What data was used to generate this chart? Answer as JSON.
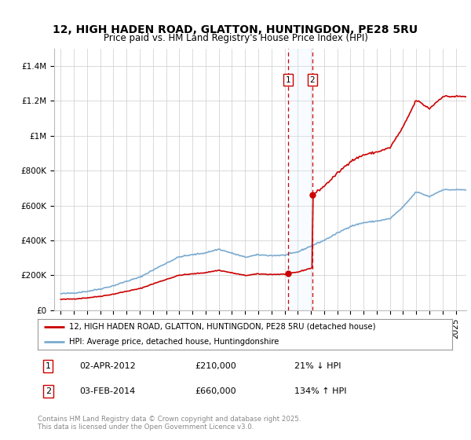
{
  "title_line1": "12, HIGH HADEN ROAD, GLATTON, HUNTINGDON, PE28 5RU",
  "title_line2": "Price paid vs. HM Land Registry's House Price Index (HPI)",
  "legend_label1": "12, HIGH HADEN ROAD, GLATTON, HUNTINGDON, PE28 5RU (detached house)",
  "legend_label2": "HPI: Average price, detached house, Huntingdonshire",
  "line1_color": "#cc0000",
  "line2_color": "#7aaad0",
  "annotation_color": "#cc0000",
  "shade_color": "#ddeeff",
  "transaction1_date": "02-APR-2012",
  "transaction1_price": 210000,
  "transaction1_pct": "21% ↓ HPI",
  "transaction1_year": 2012.25,
  "transaction2_date": "03-FEB-2014",
  "transaction2_price": 660000,
  "transaction2_pct": "134% ↑ HPI",
  "transaction2_year": 2014.09,
  "ylim": [
    0,
    1500000
  ],
  "xlim_start": 1994.5,
  "xlim_end": 2025.8,
  "footer": "Contains HM Land Registry data © Crown copyright and database right 2025.\nThis data is licensed under the Open Government Licence v3.0.",
  "bg_color": "#ffffff",
  "grid_color": "#cccccc",
  "title_fontsize": 10,
  "tick_fontsize": 7.5
}
